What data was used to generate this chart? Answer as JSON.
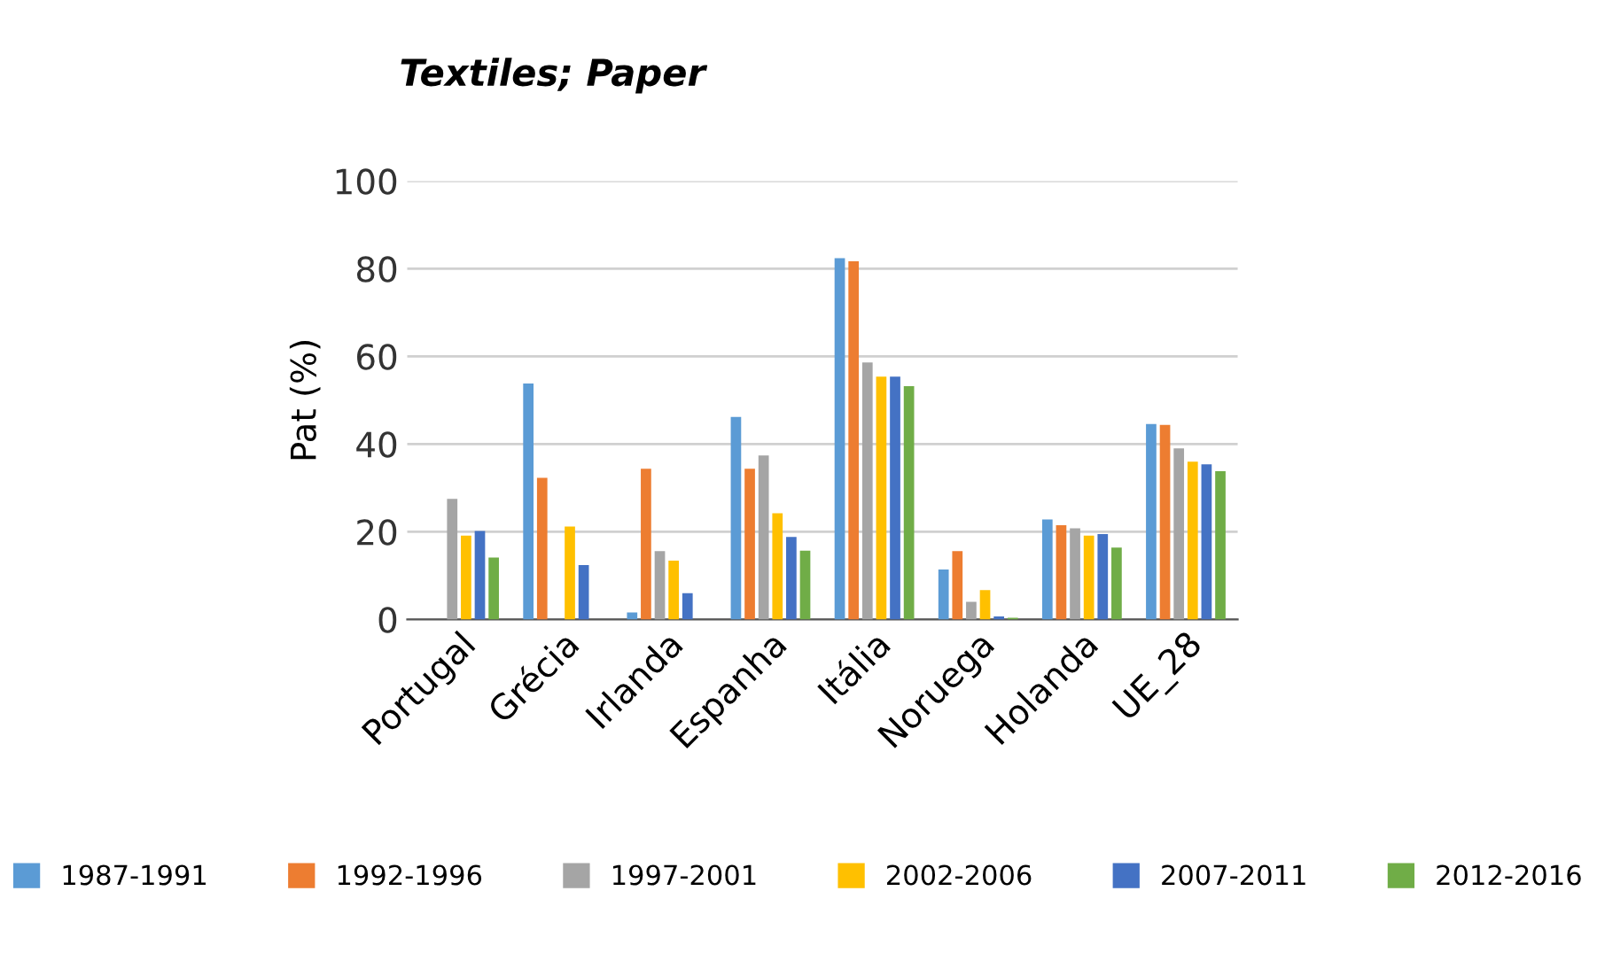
{
  "chart_data": {
    "type": "bar",
    "title": "Textiles; Paper",
    "ylabel": "Pat (%)",
    "categories": [
      "Portugal",
      "Grécia",
      "Irlanda",
      "Espanha",
      "Itália",
      "Noruega",
      "Holanda",
      "UE_28"
    ],
    "series": [
      {
        "name": "1987-1991",
        "color": "#5b9bd5",
        "values": [
          0,
          53.8,
          1.6,
          46.2,
          82.4,
          11.4,
          22.8,
          44.6
        ]
      },
      {
        "name": "1992-1996",
        "color": "#ed7d31",
        "values": [
          0,
          32.3,
          34.4,
          34.4,
          81.7,
          15.6,
          21.5,
          44.4
        ]
      },
      {
        "name": "1997-2001",
        "color": "#a5a5a5",
        "values": [
          27.5,
          0,
          15.6,
          37.4,
          58.6,
          4.0,
          20.8,
          39.0
        ]
      },
      {
        "name": "2002-2006",
        "color": "#ffc000",
        "values": [
          19.1,
          21.2,
          13.4,
          24.2,
          55.4,
          6.7,
          19.1,
          36.0
        ]
      },
      {
        "name": "2007-2011",
        "color": "#4472c4",
        "values": [
          20.2,
          12.4,
          6.0,
          18.8,
          55.4,
          0.7,
          19.5,
          35.4
        ]
      },
      {
        "name": "2012-2016",
        "color": "#70ad47",
        "values": [
          14.1,
          0,
          0,
          15.7,
          53.2,
          0.4,
          16.4,
          33.8
        ]
      }
    ],
    "ylim": [
      0,
      100
    ],
    "yticks": [
      0,
      20,
      40,
      60,
      80,
      100
    ],
    "grid": "y",
    "legend": "bottom"
  }
}
